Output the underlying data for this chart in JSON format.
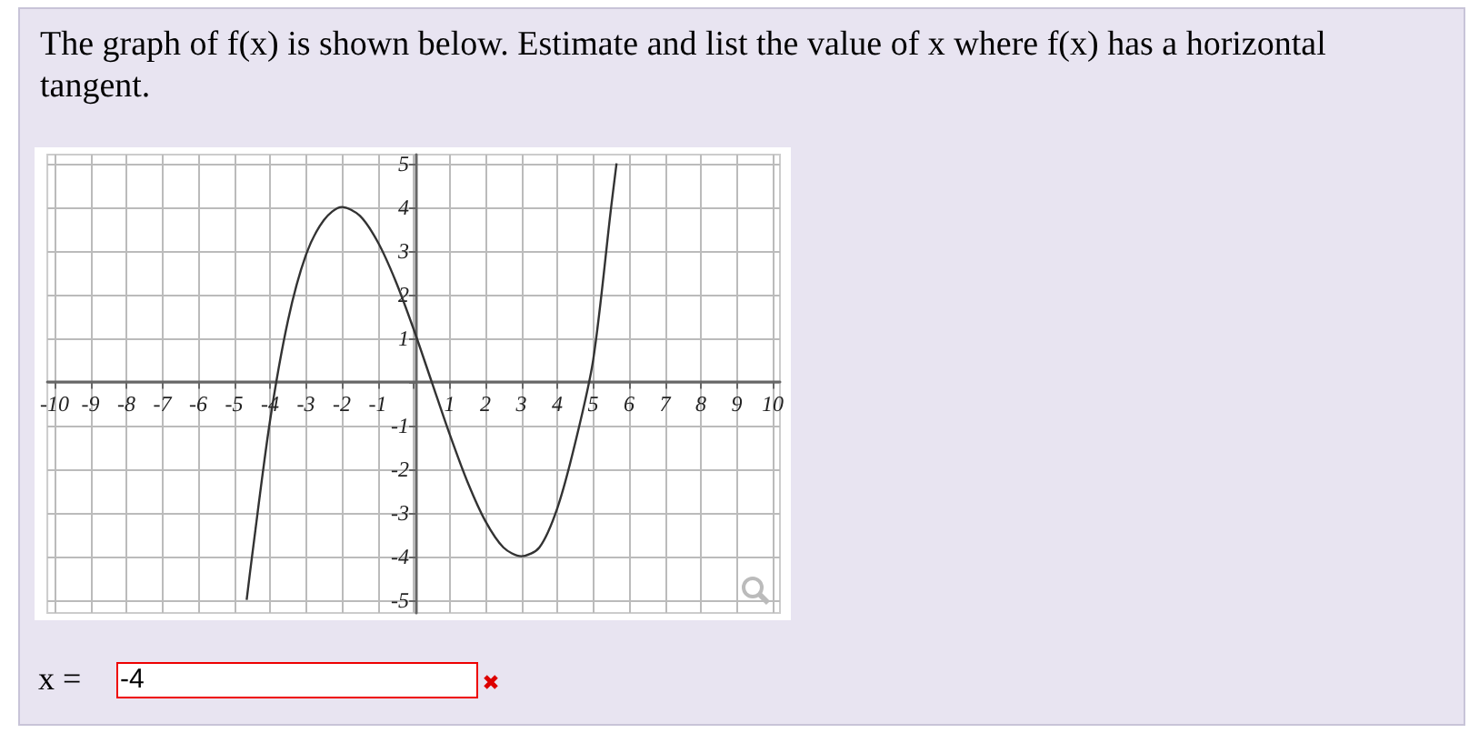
{
  "chart_data": {
    "type": "line",
    "title": "The graph of f(x) is shown below. Estimate and list the value of x where f(x) has a horizontal tangent.",
    "annotations": [
      "x =",
      "-4"
    ],
    "x": [
      -4.65,
      -4.5,
      -4,
      -3.5,
      -3,
      -2.5,
      -2,
      -1.5,
      -1,
      -0.5,
      0,
      0.5,
      1,
      1.5,
      2,
      2.5,
      3,
      3.5,
      4,
      4.5,
      5,
      5.5,
      5.65
    ],
    "series": [
      {
        "color": "#333333",
        "values": [
          -5,
          -4,
          -0.9,
          1.4,
          2.9,
          3.7,
          4,
          3.8,
          3.2,
          2.3,
          1.2,
          0,
          -1.2,
          -2.3,
          -3.2,
          -3.8,
          -4,
          -3.8,
          -2.9,
          -1.4,
          0.5,
          4,
          5
        ]
      }
    ],
    "xlim": [
      -10.2,
      10.2
    ],
    "ylim": [
      -5.3,
      5.2
    ],
    "xticks": [
      -10,
      -9,
      -8,
      -7,
      -6,
      -5,
      -4,
      -3,
      -2,
      -1,
      {
        "value": 0,
        "label": null
      },
      1,
      2,
      3,
      4,
      5,
      6,
      7,
      8,
      9,
      10
    ],
    "yticks": [
      -5,
      -4,
      -3,
      -2,
      -1,
      {
        "value": 0,
        "label": null
      },
      1,
      2,
      3,
      4,
      5
    ],
    "grid": true
  }
}
